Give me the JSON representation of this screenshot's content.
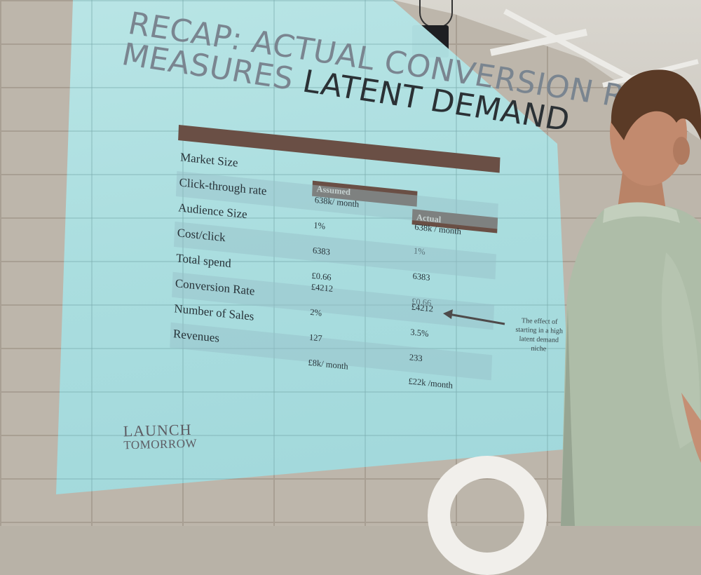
{
  "slide": {
    "title_line1": "RECAP: ACTUAL CONVERSION RATE",
    "title_line2_light": "MEASURES",
    "title_line2_dark": "LATENT DEMAND",
    "table": {
      "col_assumed": "Assumed",
      "col_actual": "Actual",
      "rows": [
        {
          "label": "Market Size",
          "assumed": "",
          "actual": ""
        },
        {
          "label": "Click-through rate",
          "assumed": "638k/ month",
          "actual": "638k / month"
        },
        {
          "label": "Audience Size",
          "assumed": "1%",
          "actual": "1%"
        },
        {
          "label": "Cost/click",
          "assumed": "6383",
          "actual": "6383"
        },
        {
          "label": "Total spend",
          "assumed": "£0.66",
          "actual": "£0.66"
        },
        {
          "label": "Conversion Rate",
          "assumed": "£4212",
          "actual": "£4212"
        },
        {
          "label": "Number of Sales",
          "assumed": "2%",
          "actual": "3.5%"
        },
        {
          "label": "Revenues",
          "assumed": "127",
          "actual": "233"
        },
        {
          "label": "",
          "assumed": "£8k/ month",
          "actual": "£22k /month"
        }
      ]
    },
    "annotation": "The effect of starting in a high latent demand niche",
    "logo_line1": "LAUNCH",
    "logo_line2": "TOMORROW"
  },
  "colors": {
    "slide_background": "#a9dfe1",
    "table_header": "#6a4f45",
    "title_light": "#7a8590",
    "title_dark": "#2b3135"
  }
}
